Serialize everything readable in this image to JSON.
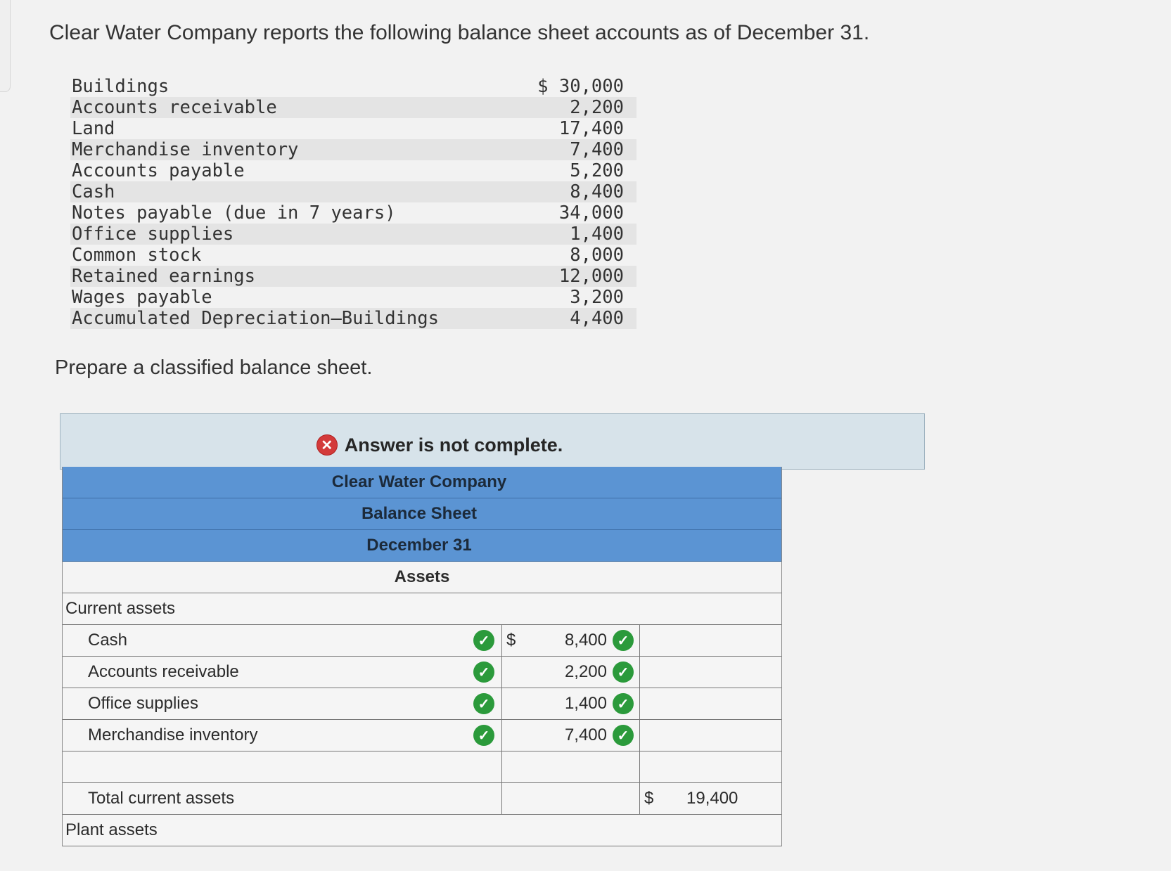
{
  "intro": "Clear Water Company reports the following balance sheet accounts as of December 31.",
  "accounts": [
    {
      "name": "Buildings",
      "amount": "$ 30,000"
    },
    {
      "name": "Accounts receivable",
      "amount": "2,200"
    },
    {
      "name": "Land",
      "amount": "17,400"
    },
    {
      "name": "Merchandise inventory",
      "amount": "7,400"
    },
    {
      "name": "Accounts payable",
      "amount": "5,200"
    },
    {
      "name": "Cash",
      "amount": "8,400"
    },
    {
      "name": "Notes payable (due in 7 years)",
      "amount": "34,000"
    },
    {
      "name": "Office supplies",
      "amount": "1,400"
    },
    {
      "name": "Common stock",
      "amount": "8,000"
    },
    {
      "name": "Retained earnings",
      "amount": "12,000"
    },
    {
      "name": "Wages payable",
      "amount": "3,200"
    },
    {
      "name": "Accumulated Depreciation—Buildings",
      "amount": "4,400"
    }
  ],
  "prompt": "Prepare a classified balance sheet.",
  "banner": {
    "text": "Answer is not complete.",
    "icon": "x-circle-icon",
    "color": "#d33a3a"
  },
  "sheet": {
    "company": "Clear Water Company",
    "title": "Balance Sheet",
    "date": "December 31",
    "section": "Assets",
    "current_assets_label": "Current assets",
    "dollar": "$",
    "items": [
      {
        "label": "Cash",
        "amount": "8,400"
      },
      {
        "label": "Accounts receivable",
        "amount": "2,200"
      },
      {
        "label": "Office supplies",
        "amount": "1,400"
      },
      {
        "label": "Merchandise inventory",
        "amount": "7,400"
      }
    ],
    "total_current_label": "Total current assets",
    "total_current_amount": "19,400",
    "plant_assets_label": "Plant assets",
    "header_color": "#5b94d3",
    "check_color": "#2b9a3b"
  }
}
